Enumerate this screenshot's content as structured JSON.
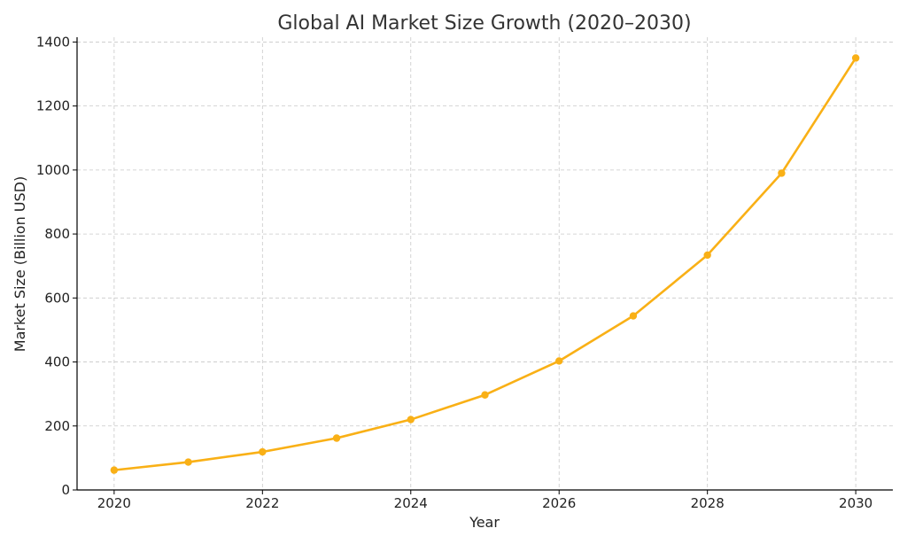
{
  "chart_data": {
    "type": "line",
    "title": "Global AI Market Size Growth (2020–2030)",
    "xlabel": "Year",
    "ylabel": "Market Size (Billion USD)",
    "x": [
      2020,
      2021,
      2022,
      2023,
      2024,
      2025,
      2026,
      2027,
      2028,
      2029,
      2030
    ],
    "series": [
      {
        "values": [
          62,
          87,
          119,
          162,
          220,
          297,
          403,
          544,
          734,
          990,
          1350
        ],
        "color": "#F9B016",
        "marker": "circle"
      }
    ],
    "xlim": [
      2019.5,
      2030.5
    ],
    "ylim": [
      0,
      1415
    ],
    "xticks": [
      2020,
      2022,
      2024,
      2026,
      2028,
      2030
    ],
    "yticks": [
      0,
      200,
      400,
      600,
      800,
      1000,
      1200,
      1400
    ],
    "grid": true,
    "legend": "none"
  }
}
